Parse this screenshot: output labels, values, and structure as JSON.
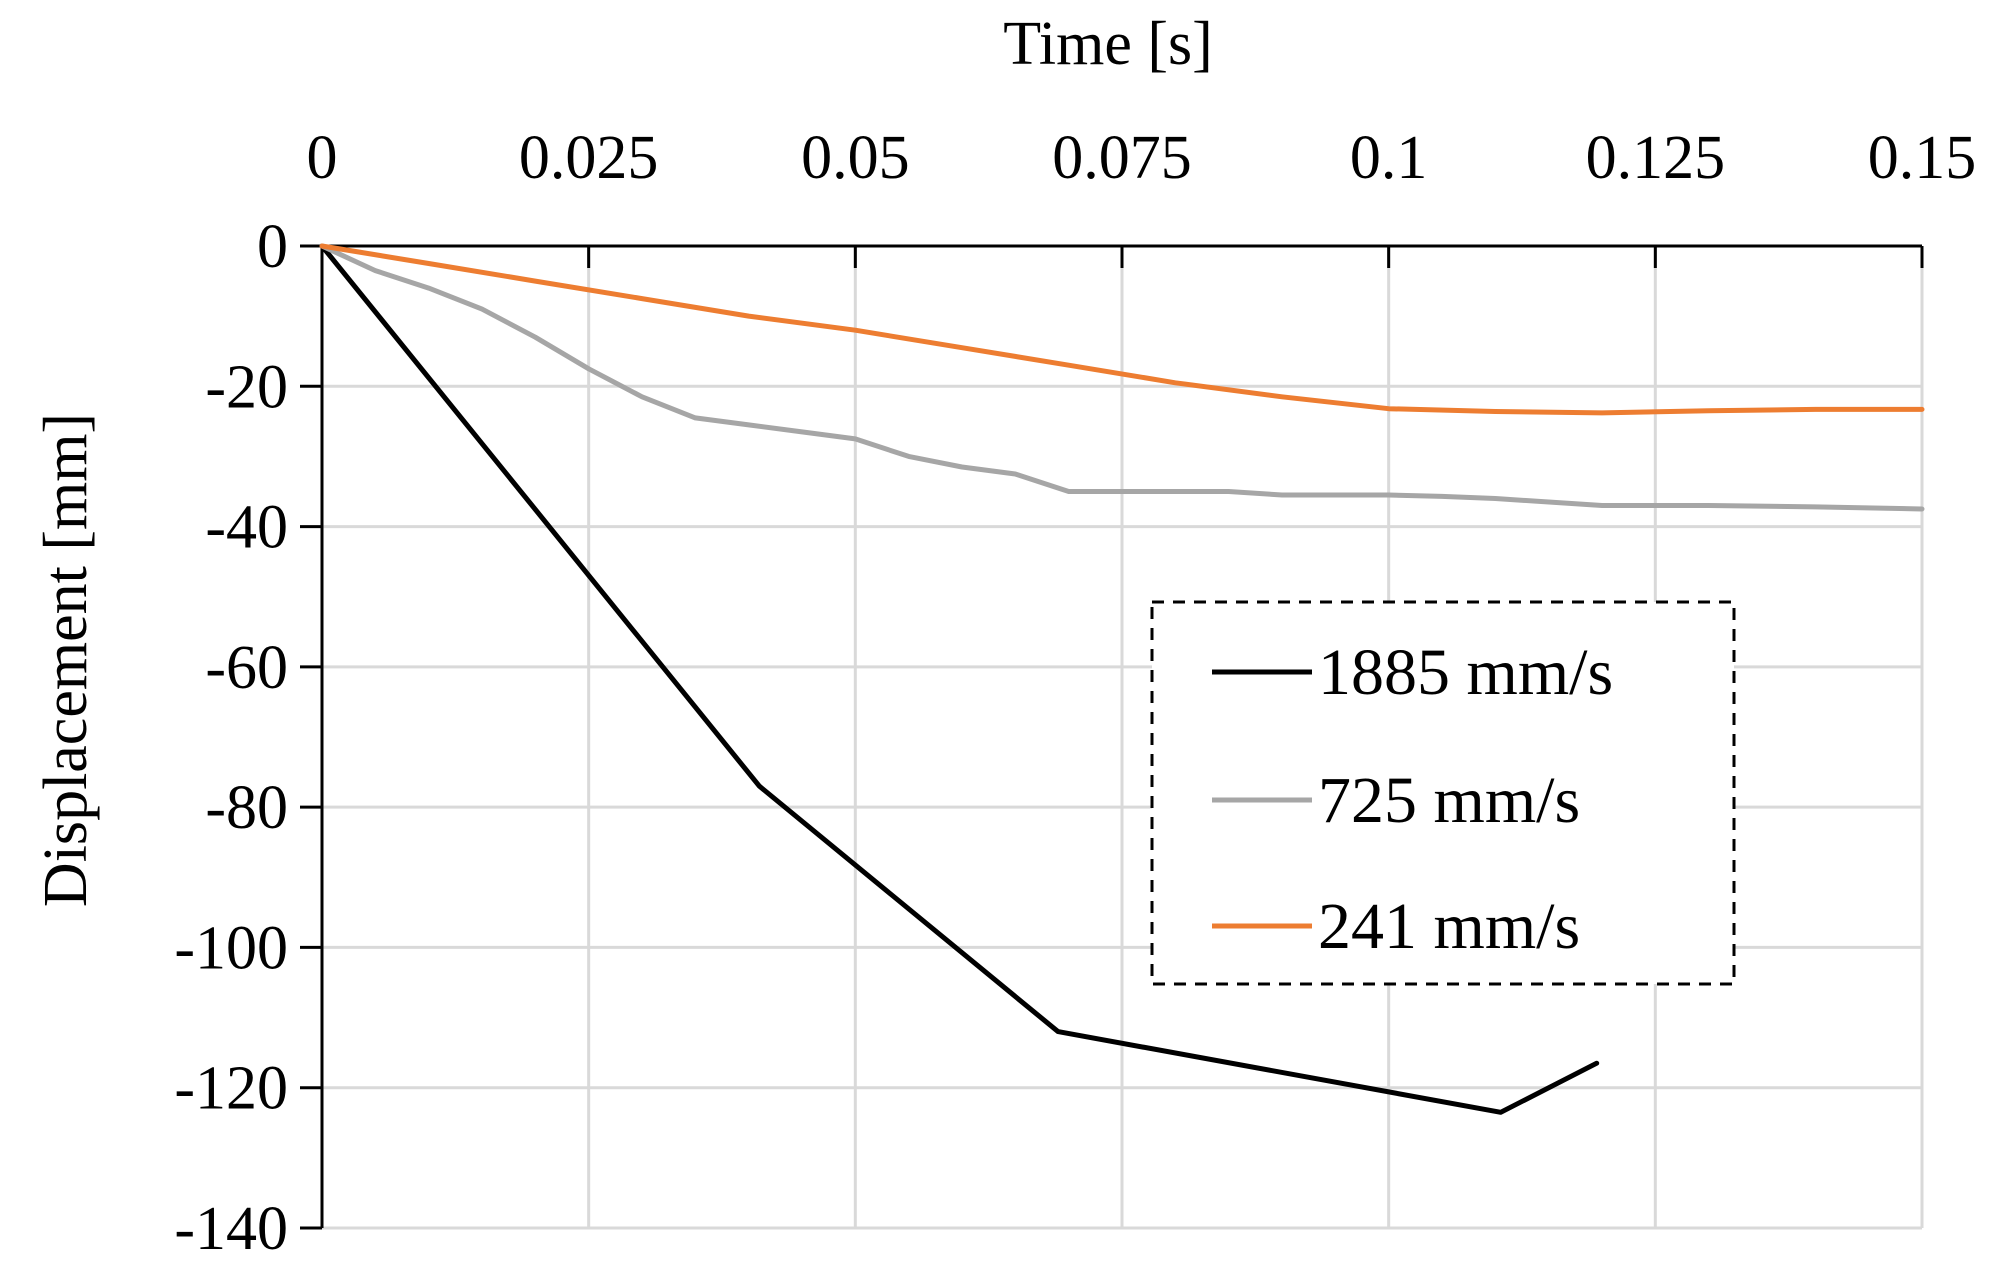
{
  "chart_data": {
    "type": "line",
    "title": "",
    "xlabel": "Time [s]",
    "ylabel": "Displacement  [mm]",
    "xlim": [
      0,
      0.15
    ],
    "ylim": [
      -140,
      0
    ],
    "x_ticks": [
      0,
      0.025,
      0.05,
      0.075,
      0.1,
      0.125,
      0.15
    ],
    "x_tick_labels": [
      "0",
      "0.025",
      "0.05",
      "0.075",
      "0.1",
      "0.125",
      "0.15"
    ],
    "y_ticks": [
      0,
      -20,
      -40,
      -60,
      -80,
      -100,
      -120,
      -140
    ],
    "y_tick_labels": [
      "0",
      "-20",
      "-40",
      "-60",
      "-80",
      "-100",
      "-120",
      "-140"
    ],
    "x_axis_position": "top",
    "grid": true,
    "legend_position": "center-right",
    "series": [
      {
        "name": "1885 mm/s",
        "color": "#000000",
        "points": [
          [
            0,
            0
          ],
          [
            0.041,
            -77
          ],
          [
            0.069,
            -112
          ],
          [
            0.1105,
            -123.5
          ],
          [
            0.1195,
            -116.5
          ]
        ]
      },
      {
        "name": "725 mm/s",
        "color": "#a6a6a6",
        "points": [
          [
            0,
            0
          ],
          [
            0.005,
            -3.5
          ],
          [
            0.01,
            -6
          ],
          [
            0.015,
            -9
          ],
          [
            0.02,
            -13
          ],
          [
            0.025,
            -17.5
          ],
          [
            0.03,
            -21.5
          ],
          [
            0.035,
            -24.5
          ],
          [
            0.04,
            -25.5
          ],
          [
            0.045,
            -26.5
          ],
          [
            0.05,
            -27.5
          ],
          [
            0.055,
            -30
          ],
          [
            0.06,
            -31.5
          ],
          [
            0.065,
            -32.5
          ],
          [
            0.07,
            -35
          ],
          [
            0.075,
            -35
          ],
          [
            0.08,
            -35
          ],
          [
            0.085,
            -35
          ],
          [
            0.09,
            -35.5
          ],
          [
            0.1,
            -35.5
          ],
          [
            0.105,
            -35.7
          ],
          [
            0.11,
            -36
          ],
          [
            0.12,
            -37
          ],
          [
            0.13,
            -37
          ],
          [
            0.14,
            -37.2
          ],
          [
            0.15,
            -37.5
          ]
        ]
      },
      {
        "name": "241 mm/s",
        "color": "#ed7d31",
        "points": [
          [
            0,
            0
          ],
          [
            0.01,
            -2.5
          ],
          [
            0.02,
            -5
          ],
          [
            0.03,
            -7.5
          ],
          [
            0.04,
            -10
          ],
          [
            0.05,
            -12
          ],
          [
            0.06,
            -14.5
          ],
          [
            0.07,
            -17
          ],
          [
            0.08,
            -19.5
          ],
          [
            0.09,
            -21.5
          ],
          [
            0.1,
            -23.2
          ],
          [
            0.11,
            -23.6
          ],
          [
            0.12,
            -23.8
          ],
          [
            0.13,
            -23.5
          ],
          [
            0.14,
            -23.3
          ],
          [
            0.15,
            -23.3
          ]
        ]
      }
    ]
  }
}
